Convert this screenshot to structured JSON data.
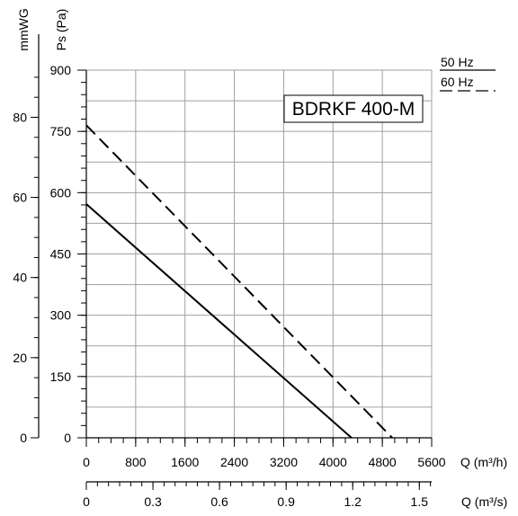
{
  "chart_data": {
    "type": "line",
    "title": "BDRKF 400-M",
    "xlabel": "Q (m³/h)",
    "x2label": "Q (m³/s)",
    "ylabel": "Ps (Pa)",
    "y2label": "mmWG",
    "xlim": [
      0,
      5600
    ],
    "ylim": [
      0,
      900
    ],
    "x_ticks": [
      0,
      800,
      1600,
      2400,
      3200,
      4000,
      4800,
      5600
    ],
    "x_tick_labels": [
      "0",
      "800",
      "1600",
      "2400",
      "3200",
      "4000",
      "4800",
      "5600"
    ],
    "x2_ticks": [
      0,
      0.3,
      0.6,
      0.9,
      1.2,
      1.5
    ],
    "x2_tick_labels": [
      "0",
      "0.3",
      "0.6",
      "0.9",
      "1.2",
      "1.5"
    ],
    "y_ticks": [
      0,
      150,
      300,
      450,
      600,
      750,
      900
    ],
    "y_tick_labels": [
      "0",
      "150",
      "300",
      "450",
      "600",
      "750",
      "900"
    ],
    "y2_ticks": [
      0,
      20,
      40,
      60,
      80
    ],
    "y2_tick_labels": [
      "0",
      "20",
      "40",
      "60",
      "80"
    ],
    "grid": true,
    "legend_position": "top-right",
    "series": [
      {
        "name": "50 Hz",
        "style": "solid",
        "x": [
          0,
          4300
        ],
        "y": [
          572,
          0
        ]
      },
      {
        "name": "60 Hz",
        "style": "dashed",
        "x": [
          0,
          4960
        ],
        "y": [
          765,
          0
        ]
      }
    ]
  },
  "colors": {
    "line": "#000000",
    "grid": "#a0a0a0",
    "axis": "#000000"
  }
}
